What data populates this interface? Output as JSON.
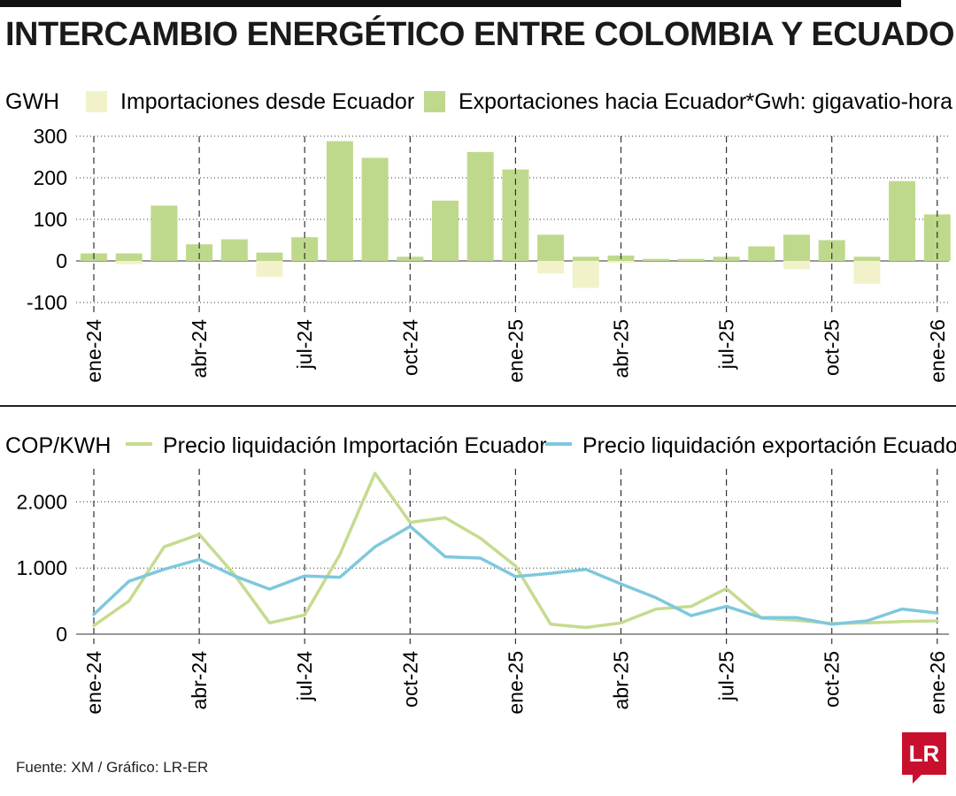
{
  "title": "INTERCAMBIO ENERGÉTICO ENTRE COLOMBIA Y ECUADOR",
  "source": "Fuente: XM / Gráfico: LR-ER",
  "logo_text": "LR",
  "colors": {
    "import_bar": "#f1f2c9",
    "export_bar": "#bfd98c",
    "import_line": "#c5db8f",
    "export_line": "#7ec8dd",
    "logo": "#c8102e",
    "gridline": "#333333"
  },
  "chart_data": [
    {
      "type": "bar",
      "unit_label": "GWH",
      "note": "*Gwh: gigavatio-hora",
      "ylim": [
        -100,
        300
      ],
      "yticks": [
        300,
        200,
        100,
        0,
        -100
      ],
      "ytick_labels": [
        "300",
        "200",
        "100",
        "0",
        "-100"
      ],
      "months": [
        "ene-24",
        "feb-24",
        "mar-24",
        "abr-24",
        "may-24",
        "jun-24",
        "jul-24",
        "ago-24",
        "sep-24",
        "oct-24",
        "nov-24",
        "dic-24",
        "ene-25",
        "feb-25",
        "mar-25",
        "abr-25",
        "may-25",
        "jun-25",
        "jul-25",
        "ago-25",
        "sep-25",
        "oct-25",
        "nov-25",
        "dic-25",
        "ene-26"
      ],
      "xtick_labels": [
        "ene-24",
        "abr-24",
        "jul-24",
        "oct-24",
        "ene-25",
        "abr-25",
        "jul-25",
        "oct-25",
        "ene-26"
      ],
      "series": [
        {
          "name": "Importaciones desde Ecuador",
          "values": [
            0,
            -8,
            0,
            0,
            0,
            -38,
            0,
            0,
            0,
            0,
            0,
            0,
            0,
            -30,
            -65,
            -5,
            0,
            0,
            0,
            0,
            -20,
            0,
            -55,
            0,
            0
          ]
        },
        {
          "name": "Exportaciones hacia Ecuador",
          "values": [
            18,
            18,
            133,
            40,
            52,
            20,
            57,
            288,
            248,
            10,
            145,
            262,
            220,
            63,
            10,
            13,
            5,
            5,
            10,
            35,
            63,
            50,
            10,
            192,
            112
          ]
        }
      ]
    },
    {
      "type": "line",
      "unit_label": "COP/KWH",
      "ylim": [
        0,
        2500
      ],
      "yticks": [
        2000,
        1000,
        0
      ],
      "ytick_labels": [
        "2.000",
        "1.000",
        "0"
      ],
      "months": [
        "ene-24",
        "feb-24",
        "mar-24",
        "abr-24",
        "may-24",
        "jun-24",
        "jul-24",
        "ago-24",
        "sep-24",
        "oct-24",
        "nov-24",
        "dic-24",
        "ene-25",
        "feb-25",
        "mar-25",
        "abr-25",
        "may-25",
        "jun-25",
        "jul-25",
        "ago-25",
        "sep-25",
        "oct-25",
        "nov-25",
        "dic-25",
        "ene-26"
      ],
      "xtick_labels": [
        "ene-24",
        "abr-24",
        "jul-24",
        "oct-24",
        "ene-25",
        "abr-25",
        "jul-25",
        "oct-25",
        "ene-26"
      ],
      "series": [
        {
          "name": "Precio liquidación Importación Ecuador",
          "values": [
            130,
            500,
            1320,
            1510,
            900,
            170,
            290,
            1200,
            2430,
            1690,
            1760,
            1450,
            1030,
            150,
            100,
            170,
            380,
            420,
            690,
            240,
            210,
            160,
            170,
            190,
            200
          ]
        },
        {
          "name": "Precio liquidación exportación Ecuador",
          "values": [
            300,
            800,
            980,
            1130,
            880,
            680,
            880,
            860,
            1320,
            1630,
            1170,
            1150,
            870,
            920,
            980,
            760,
            550,
            280,
            420,
            250,
            250,
            150,
            200,
            380,
            320
          ]
        }
      ]
    }
  ]
}
